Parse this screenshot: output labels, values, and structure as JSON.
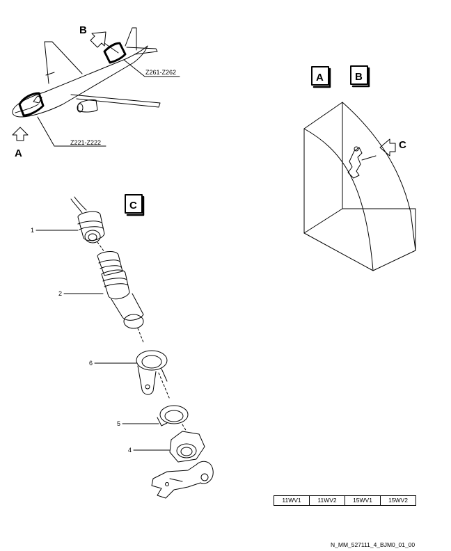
{
  "views": {
    "a": "A",
    "b": "B",
    "c": "C"
  },
  "arrows": {
    "a": "A",
    "b": "B",
    "c": "C"
  },
  "zones": {
    "fwd": "Z221-Z222",
    "aft": "Z261-Z262"
  },
  "items": [
    "1",
    "2",
    "6",
    "5",
    "4"
  ],
  "effectivity": [
    "11WV1",
    "11WV2",
    "15WV1",
    "15WV2"
  ],
  "figure_ref": "N_MM_527111_4_BJM0_01_00"
}
